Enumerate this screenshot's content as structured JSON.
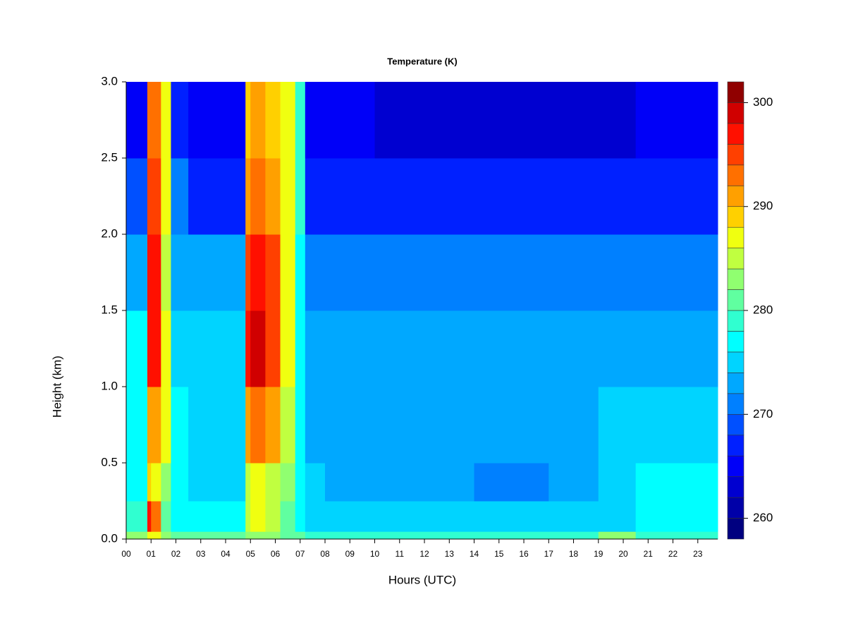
{
  "chart_data": {
    "type": "heatmap",
    "title": "Temperature (K)",
    "x_label": "Hours (UTC)",
    "y_label": "Height (km)",
    "x": [
      0,
      0.85,
      1.0,
      1.4,
      1.8,
      2.5,
      4.8,
      5.0,
      5.6,
      6.2,
      6.8,
      7.2,
      8,
      10,
      14,
      17,
      19,
      20.5,
      23.8
    ],
    "y": [
      0,
      0.05,
      0.25,
      0.5,
      1.0,
      1.5,
      2.0,
      2.5,
      3.0
    ],
    "z": [
      [
        282,
        286,
        286,
        282,
        280,
        280,
        282,
        282,
        282,
        280,
        280,
        278,
        278,
        278,
        278,
        279,
        282,
        279
      ],
      [
        278,
        296,
        292,
        280,
        277,
        276,
        284,
        286,
        284,
        280,
        277,
        275,
        274,
        274,
        274,
        275,
        275,
        276
      ],
      [
        277,
        288,
        286,
        282,
        277,
        275,
        284,
        286,
        284,
        282,
        276,
        274,
        272,
        272,
        271,
        272,
        274,
        276
      ],
      [
        277,
        290,
        290,
        286,
        276,
        274,
        290,
        292,
        290,
        284,
        276,
        273,
        273,
        273,
        272,
        273,
        274,
        275
      ],
      [
        276,
        296,
        296,
        286,
        275,
        274,
        296,
        298,
        294,
        286,
        276,
        273,
        272,
        272,
        272,
        272,
        273,
        273
      ],
      [
        273,
        296,
        296,
        284,
        273,
        272,
        294,
        296,
        294,
        286,
        276,
        271,
        270,
        270,
        270,
        270,
        270,
        270
      ],
      [
        268,
        294,
        294,
        286,
        270,
        267,
        290,
        292,
        290,
        286,
        278,
        267,
        266,
        266,
        266,
        266,
        266,
        266
      ],
      [
        265,
        292,
        292,
        286,
        266,
        264,
        288,
        290,
        288,
        286,
        278,
        265,
        264,
        263,
        263,
        263,
        263,
        264
      ]
    ],
    "xlim": [
      0,
      23.8
    ],
    "ylim": [
      0,
      3
    ],
    "xticks": [
      {
        "value": 0,
        "label": "00"
      },
      {
        "value": 1,
        "label": "01"
      },
      {
        "value": 2,
        "label": "02"
      },
      {
        "value": 3,
        "label": "03"
      },
      {
        "value": 4,
        "label": "04"
      },
      {
        "value": 5,
        "label": "05"
      },
      {
        "value": 6,
        "label": "06"
      },
      {
        "value": 7,
        "label": "07"
      },
      {
        "value": 8,
        "label": "08"
      },
      {
        "value": 9,
        "label": "09"
      },
      10,
      11,
      12,
      13,
      14,
      15,
      16,
      17,
      18,
      19,
      20,
      21,
      22,
      23
    ],
    "yticks": [
      {
        "value": 0,
        "label": "0.0"
      },
      0.5,
      {
        "value": 1,
        "label": "1.0"
      },
      1.5,
      {
        "value": 2,
        "label": "2.0"
      },
      2.5,
      {
        "value": 3,
        "label": "3.0"
      }
    ],
    "levels": [
      258,
      260,
      262,
      264,
      266,
      268,
      270,
      272,
      274,
      276,
      278,
      280,
      282,
      284,
      286,
      288,
      290,
      292,
      294,
      296,
      298,
      300,
      302
    ],
    "colors": [
      "#000080",
      "#0000a8",
      "#0000d0",
      "#0000f8",
      "#0020ff",
      "#0050ff",
      "#0080ff",
      "#00a8ff",
      "#00d4ff",
      "#00ffff",
      "#30ffd0",
      "#60ffa0",
      "#90ff70",
      "#c0ff40",
      "#f0ff10",
      "#ffd000",
      "#ffa000",
      "#ff7000",
      "#ff4000",
      "#ff1000",
      "#d00000",
      "#900000"
    ],
    "colorbar_ticks": [
      260,
      270,
      280,
      290,
      300
    ]
  }
}
